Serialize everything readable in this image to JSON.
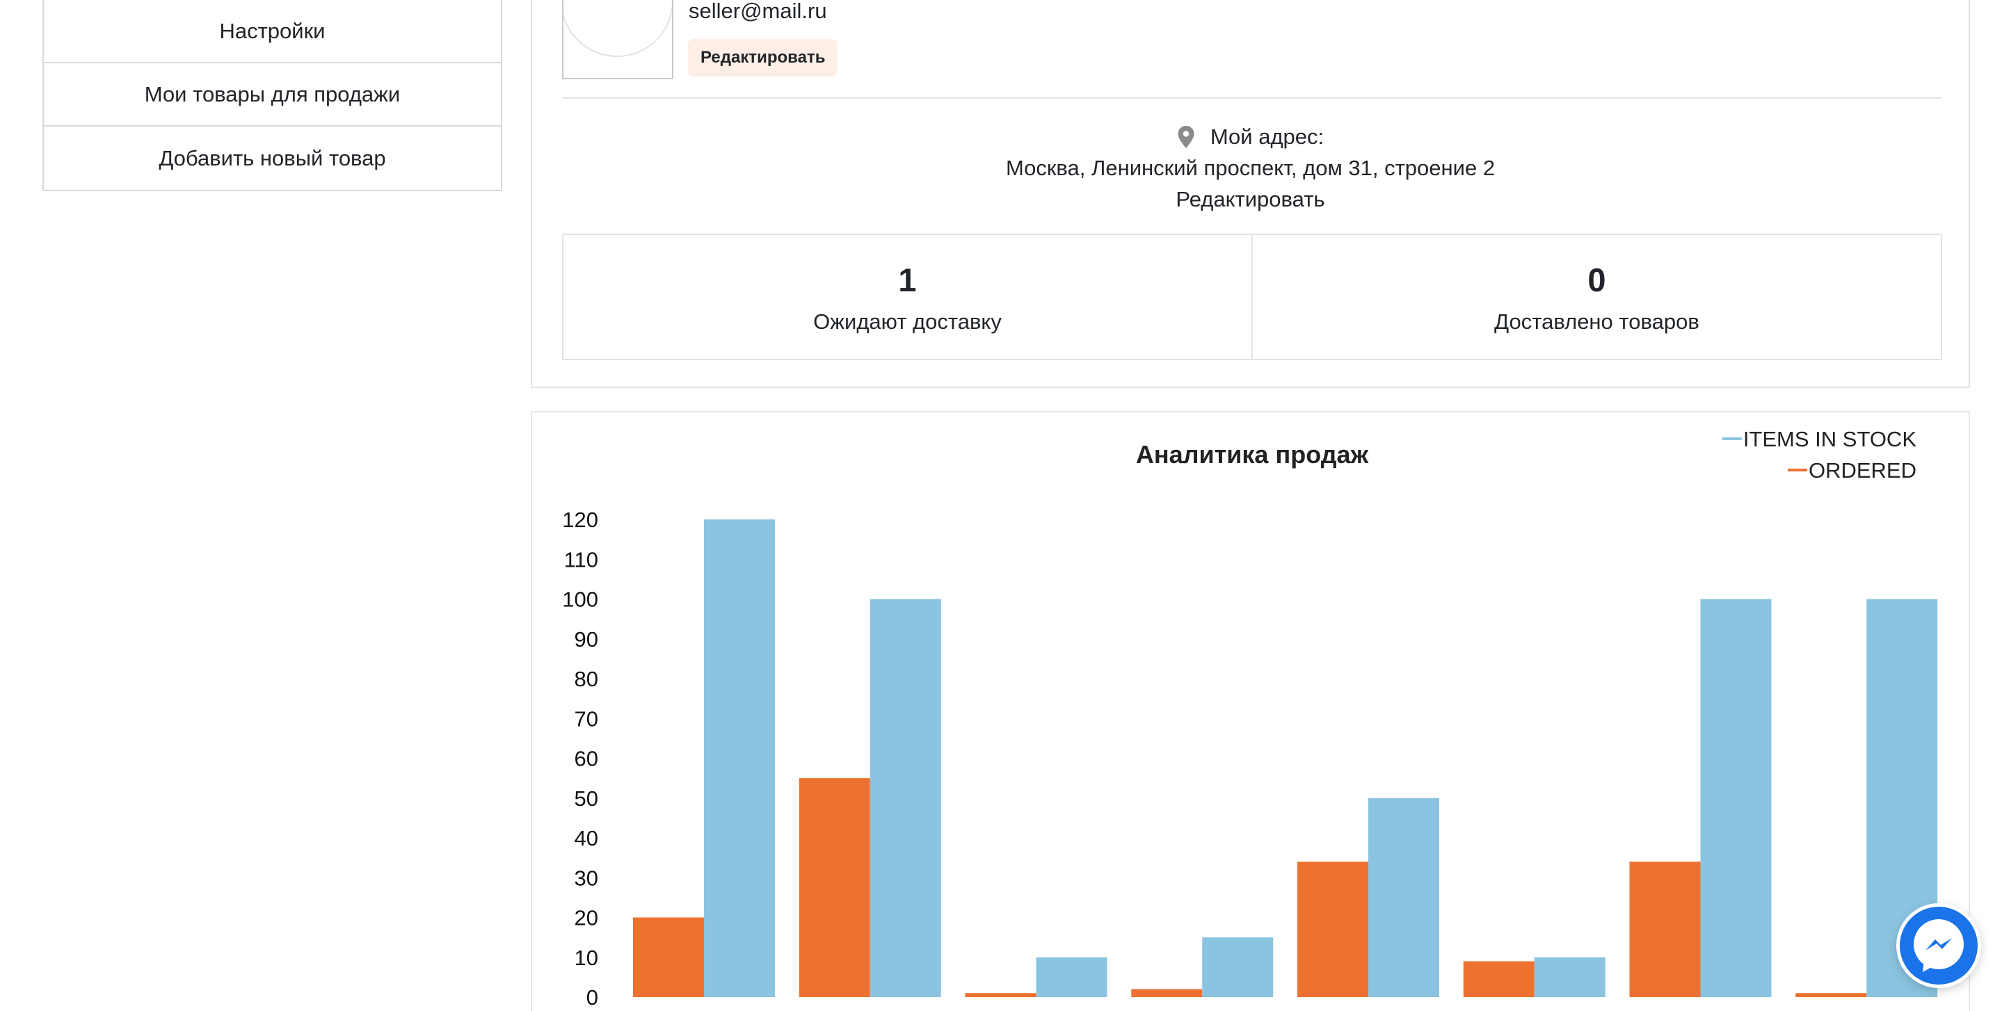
{
  "sidebar": {
    "items": [
      {
        "label": "Настройки"
      },
      {
        "label": "Мои товары для продажи"
      },
      {
        "label": "Добавить новый товар"
      }
    ]
  },
  "profile": {
    "email": "seller@mail.ru",
    "edit_label": "Редактировать",
    "address_title": "Мой адрес:",
    "address": "Москва, Ленинский проспект, дом 31, строение 2",
    "address_edit_label": "Редактировать",
    "stats": [
      {
        "value": "1",
        "label": "Ожидают доставку"
      },
      {
        "value": "0",
        "label": "Доставлено товаров"
      }
    ]
  },
  "colors": {
    "ordered": "#ed7130",
    "in_stock": "#8bc4e0",
    "messenger": "#1a73e8"
  },
  "icons": {
    "address": "map-pin-icon",
    "chat": "messenger-icon"
  },
  "chart_data": {
    "type": "bar",
    "title": "Аналитика продаж",
    "categories": [
      "",
      "",
      "",
      "",
      "",
      "",
      "",
      ""
    ],
    "series": [
      {
        "name": "ORDERED",
        "color": "#ed7130",
        "values": [
          20,
          55,
          1,
          2,
          34,
          9,
          34,
          1
        ]
      },
      {
        "name": "ITEMS IN STOCK",
        "color": "#8bc4e0",
        "values": [
          120,
          100,
          10,
          15,
          50,
          10,
          100,
          100
        ]
      }
    ],
    "ylim": [
      0,
      120
    ],
    "yticks": [
      0,
      10,
      20,
      30,
      40,
      50,
      60,
      70,
      80,
      90,
      100,
      110,
      120
    ],
    "xlabel": "",
    "ylabel": "",
    "grid": false,
    "legend_position": "top-right"
  }
}
